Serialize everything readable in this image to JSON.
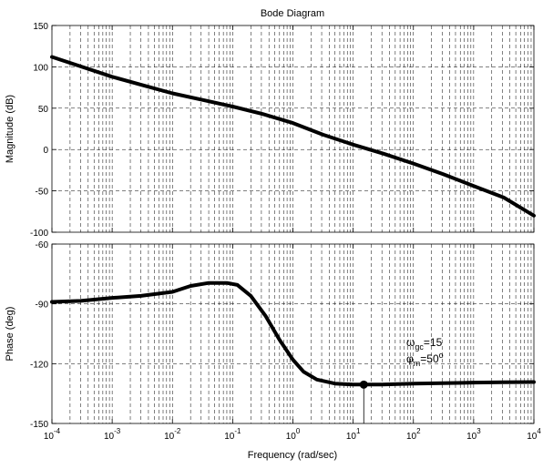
{
  "title": "Bode Diagram",
  "xlabel": "Frequency  (rad/sec)",
  "annotation": {
    "omega": "ω",
    "omega_sub": "gc",
    "omega_val": "=15",
    "phi": "φ",
    "phi_sub": "m",
    "phi_val": "=50",
    "phi_sup": "o"
  },
  "chart_data": [
    {
      "type": "line",
      "title": "Bode Diagram",
      "xlabel": "Frequency  (rad/sec)",
      "ylabel": "Magnitude (dB)",
      "xscale": "log",
      "xlim": [
        0.0001,
        10000
      ],
      "ylim": [
        -100,
        150
      ],
      "grid": true,
      "xtick_exponents": [
        -4,
        -3,
        -2,
        -1,
        0,
        1,
        2,
        3,
        4
      ],
      "yticks": [
        150,
        100,
        50,
        0,
        -50,
        -100
      ],
      "series": [
        {
          "x": [
            0.0001,
            0.000316,
            0.001,
            0.00316,
            0.01,
            0.0316,
            0.1,
            0.316,
            1,
            3.16,
            10,
            31.6,
            100,
            316,
            1000,
            3160,
            10000
          ],
          "y": [
            112,
            100,
            88,
            78,
            68,
            60,
            52,
            43,
            32,
            18,
            6,
            -5,
            -17,
            -30,
            -44,
            -58,
            -80
          ]
        }
      ]
    },
    {
      "type": "line",
      "xlabel": "Frequency  (rad/sec)",
      "ylabel": "Phase (deg)",
      "xscale": "log",
      "xlim": [
        0.0001,
        10000
      ],
      "ylim": [
        -150,
        -60
      ],
      "grid": true,
      "xtick_exponents": [
        -4,
        -3,
        -2,
        -1,
        0,
        1,
        2,
        3,
        4
      ],
      "yticks": [
        -60,
        -90,
        -120,
        -150
      ],
      "series": [
        {
          "x": [
            0.0001,
            0.0003,
            0.001,
            0.003,
            0.01,
            0.02,
            0.04,
            0.08,
            0.12,
            0.2,
            0.35,
            0.6,
            1,
            1.5,
            2.5,
            5,
            10,
            15,
            30,
            100,
            300,
            1000,
            3000,
            10000
          ],
          "y": [
            -89,
            -88.5,
            -87,
            -86,
            -84,
            -81,
            -79.5,
            -79.5,
            -80.5,
            -86,
            -96,
            -108,
            -118,
            -124,
            -128,
            -130,
            -130.5,
            -130.5,
            -130.5,
            -130,
            -129.8,
            -129.5,
            -129.3,
            -129.2
          ]
        }
      ],
      "marker": {
        "x": 15,
        "y": -130.5
      }
    }
  ]
}
